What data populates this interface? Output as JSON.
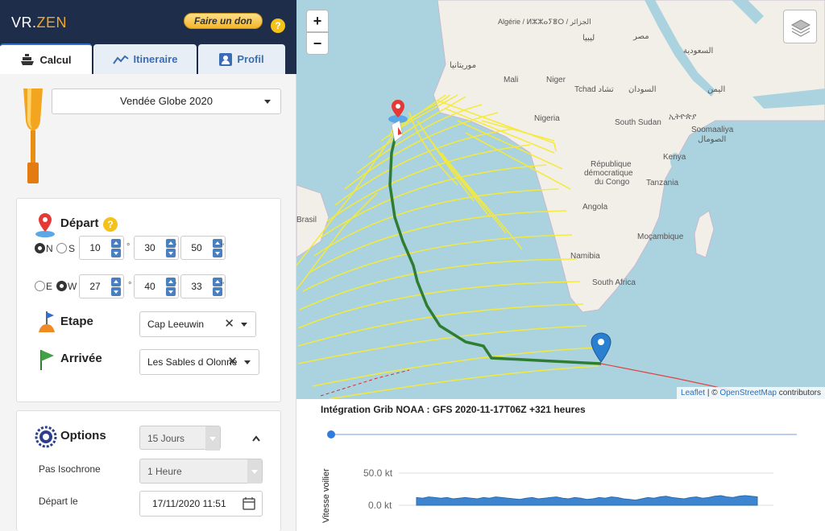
{
  "app": {
    "logo_a": "VR.",
    "logo_b": "ZEN",
    "donate_label": "Faire un don",
    "help_glyph": "?"
  },
  "tabs": [
    {
      "label": "Calcul"
    },
    {
      "label": "Itineraire"
    },
    {
      "label": "Profil"
    }
  ],
  "race": {
    "selected": "Vendée Globe 2020"
  },
  "departure": {
    "title": "Départ",
    "lat": {
      "n_label": "N",
      "s_label": "S",
      "selected": "N",
      "deg": "10",
      "min": "30",
      "sec": "50"
    },
    "lon": {
      "e_label": "E",
      "w_label": "W",
      "selected": "W",
      "deg": "27",
      "min": "40",
      "sec": "33"
    },
    "deg_unit": "°",
    "min_unit": "'",
    "sec_unit": "''"
  },
  "stage": {
    "title": "Etape",
    "value": "Cap Leeuwin"
  },
  "arrival": {
    "title": "Arrivée",
    "value": "Les Sables d Olonne"
  },
  "options": {
    "title": "Options",
    "days": "15 Jours",
    "isochrone_label": "Pas Isochrone",
    "isochrone_value": "1 Heure",
    "depart_label": "Départ le",
    "depart_value": "17/11/2020 11:51"
  },
  "map": {
    "zoom_in": "+",
    "zoom_out": "−",
    "attrib_leaflet": "Leaflet",
    "attrib_sep": " | © ",
    "attrib_osm": "OpenStreetMap",
    "attrib_tail": " contributors",
    "places": [
      {
        "name": "Algérie / ⵍⵣⵣⴰⵢⴻⵔ / الجزائر"
      },
      {
        "name": "ليبيا"
      },
      {
        "name": "مصر"
      },
      {
        "name": "Mali"
      },
      {
        "name": "Niger"
      },
      {
        "name": "Tchad تشاد"
      },
      {
        "name": "السودان"
      },
      {
        "name": "Nigeria"
      },
      {
        "name": "South Sudan"
      },
      {
        "name": "Kenya"
      },
      {
        "name": "République"
      },
      {
        "name": "démocratique"
      },
      {
        "name": "du Congo"
      },
      {
        "name": "Tanzania"
      },
      {
        "name": "Angola"
      },
      {
        "name": "Moçambique"
      },
      {
        "name": "Namibia"
      },
      {
        "name": "South Africa"
      },
      {
        "name": "Brasil"
      },
      {
        "name": "اليمن"
      },
      {
        "name": "السعودية"
      },
      {
        "name": "Soomaaliya"
      },
      {
        "name": "الصومال"
      },
      {
        "name": "ኢትዮጵያ"
      },
      {
        "name": "موريتانيا"
      }
    ]
  },
  "grib": {
    "text": "Intégration Grib NOAA : GFS 2020-11-17T06Z +321 heures"
  },
  "speed_chart": {
    "ylabel": "Vitesse voilier",
    "ticks": [
      "50.0 kt",
      "0.0 kt"
    ],
    "color": "#3d86cf"
  },
  "chart_data": {
    "type": "area",
    "ylabel": "Vitesse voilier",
    "ylim": [
      0,
      50
    ],
    "values": [
      12,
      11,
      13,
      12,
      11,
      12,
      10,
      11,
      12,
      11,
      10,
      12,
      11,
      13,
      12,
      11,
      10,
      9,
      11,
      12,
      10,
      11,
      12,
      13,
      11,
      10,
      12,
      11,
      9,
      10,
      12,
      11,
      13,
      12,
      10,
      9,
      8,
      10,
      12,
      11,
      13,
      14,
      12,
      11,
      10,
      12,
      13,
      11,
      12,
      14,
      15,
      13,
      12,
      14,
      15,
      14,
      13
    ]
  }
}
